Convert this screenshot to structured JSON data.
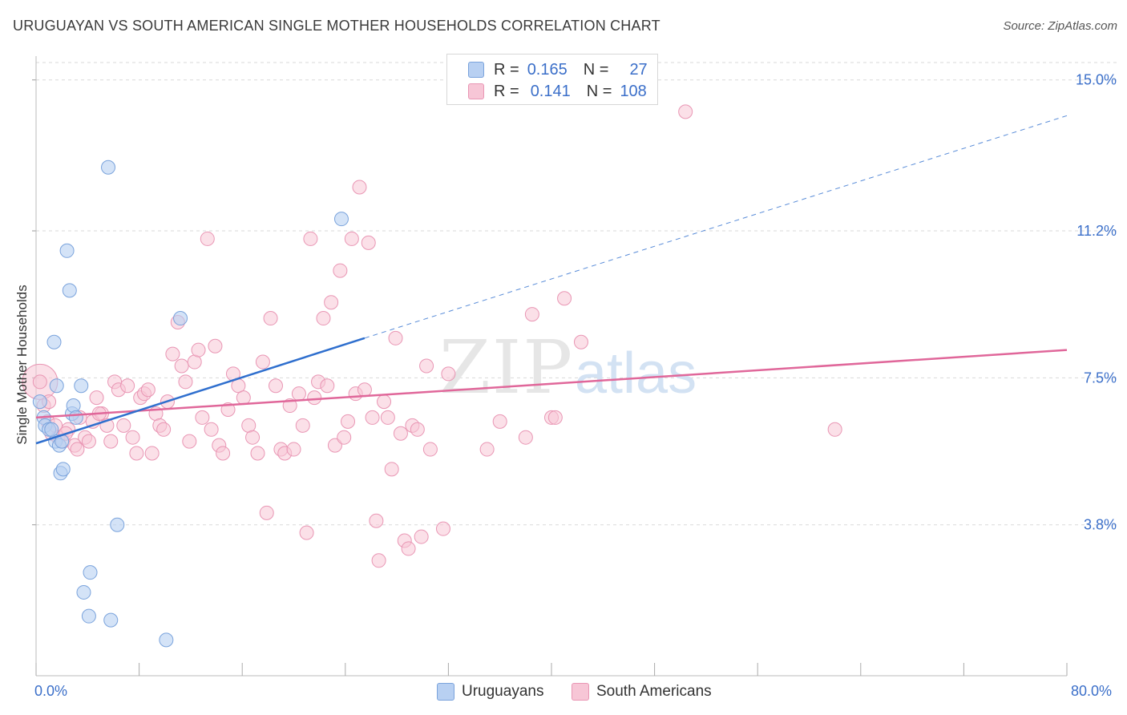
{
  "title": "URUGUAYAN VS SOUTH AMERICAN SINGLE MOTHER HOUSEHOLDS CORRELATION CHART",
  "source": "Source: ZipAtlas.com",
  "legend": {
    "rows": [
      {
        "r_label": "R =",
        "r_value": "0.165",
        "n_label": "N =",
        "n_value": "27"
      },
      {
        "r_label": "R =",
        "r_value": "0.141",
        "n_label": "N =",
        "n_value": "108"
      }
    ]
  },
  "bottom_legend": [
    "Uruguayans",
    "South Americans"
  ],
  "x_labels": {
    "min": "0.0%",
    "max": "80.0%"
  },
  "colors": {
    "blue_fill": "#b8d0f2",
    "blue_stroke": "#7aa3dc",
    "blue_line": "#2f6fce",
    "pink_fill": "#f7c6d6",
    "pink_stroke": "#e996b4",
    "pink_line": "#e0679a",
    "grid": "#d9d9d9",
    "tick_label": "#3b6fc9"
  },
  "chart_data": {
    "type": "scatter",
    "title": "URUGUAYAN VS SOUTH AMERICAN SINGLE MOTHER HOUSEHOLDS CORRELATION CHART",
    "xlabel": "",
    "ylabel": "Single Mother Households",
    "xlim": [
      0,
      80
    ],
    "ylim": [
      0,
      15.6
    ],
    "y_ticks": [
      3.8,
      7.5,
      11.2,
      15.0
    ],
    "y_tick_labels": [
      "3.8%",
      "7.5%",
      "11.2%",
      "15.0%"
    ],
    "grid": "horizontal dashed",
    "legend_position": "top-center",
    "series": [
      {
        "name": "Uruguayans",
        "color": "#b8d0f2",
        "points": [
          [
            0.3,
            6.9
          ],
          [
            0.6,
            6.5
          ],
          [
            0.7,
            6.3
          ],
          [
            1.0,
            6.2
          ],
          [
            1.5,
            5.9
          ],
          [
            1.6,
            7.3
          ],
          [
            1.8,
            5.8
          ],
          [
            1.9,
            5.1
          ],
          [
            2.1,
            5.2
          ],
          [
            2.4,
            10.7
          ],
          [
            2.6,
            9.7
          ],
          [
            2.8,
            6.6
          ],
          [
            2.9,
            6.8
          ],
          [
            3.1,
            6.5
          ],
          [
            3.5,
            7.3
          ],
          [
            4.2,
            2.6
          ],
          [
            3.7,
            2.1
          ],
          [
            4.1,
            1.5
          ],
          [
            5.8,
            1.4
          ],
          [
            6.3,
            3.8
          ],
          [
            5.6,
            12.8
          ],
          [
            1.4,
            8.4
          ],
          [
            10.1,
            0.9
          ],
          [
            11.2,
            9.0
          ],
          [
            23.7,
            11.5
          ],
          [
            1.2,
            6.2
          ],
          [
            2.0,
            5.9
          ]
        ],
        "trend": {
          "x": [
            0,
            25.5
          ],
          "y": [
            5.85,
            8.5
          ],
          "dashed_to": [
            80,
            14.1
          ]
        }
      },
      {
        "name": "South Americans",
        "color": "#f7c6d6",
        "points": [
          [
            0.3,
            7.4
          ],
          [
            0.6,
            6.8
          ],
          [
            0.9,
            6.4
          ],
          [
            1.2,
            6.1
          ],
          [
            1.5,
            6.3
          ],
          [
            1.7,
            6.0
          ],
          [
            2.1,
            5.9
          ],
          [
            2.5,
            6.2
          ],
          [
            3.0,
            5.8
          ],
          [
            3.4,
            6.5
          ],
          [
            3.8,
            6.0
          ],
          [
            4.1,
            5.9
          ],
          [
            4.4,
            6.4
          ],
          [
            4.7,
            7.0
          ],
          [
            5.1,
            6.6
          ],
          [
            5.5,
            6.3
          ],
          [
            5.8,
            5.9
          ],
          [
            6.1,
            7.4
          ],
          [
            6.4,
            7.2
          ],
          [
            6.8,
            6.3
          ],
          [
            7.1,
            7.3
          ],
          [
            7.5,
            6.0
          ],
          [
            7.8,
            5.6
          ],
          [
            8.1,
            7.0
          ],
          [
            8.4,
            7.1
          ],
          [
            8.7,
            7.2
          ],
          [
            9.0,
            5.6
          ],
          [
            9.3,
            6.6
          ],
          [
            9.6,
            6.3
          ],
          [
            9.9,
            6.2
          ],
          [
            10.2,
            6.9
          ],
          [
            10.6,
            8.1
          ],
          [
            11.0,
            8.9
          ],
          [
            11.3,
            7.8
          ],
          [
            11.6,
            7.4
          ],
          [
            11.9,
            5.9
          ],
          [
            12.3,
            7.9
          ],
          [
            12.6,
            8.2
          ],
          [
            12.9,
            6.5
          ],
          [
            13.3,
            11.0
          ],
          [
            13.6,
            6.2
          ],
          [
            13.9,
            8.3
          ],
          [
            14.2,
            5.8
          ],
          [
            14.5,
            5.6
          ],
          [
            14.9,
            6.7
          ],
          [
            15.3,
            7.6
          ],
          [
            15.7,
            7.3
          ],
          [
            16.1,
            7.0
          ],
          [
            16.5,
            6.3
          ],
          [
            16.8,
            6.0
          ],
          [
            17.2,
            5.6
          ],
          [
            17.6,
            7.9
          ],
          [
            17.9,
            4.1
          ],
          [
            18.2,
            9.0
          ],
          [
            18.6,
            7.3
          ],
          [
            19.0,
            5.7
          ],
          [
            19.3,
            5.6
          ],
          [
            19.7,
            6.8
          ],
          [
            20.0,
            5.7
          ],
          [
            20.4,
            7.1
          ],
          [
            20.7,
            6.3
          ],
          [
            21.0,
            3.6
          ],
          [
            21.3,
            11.0
          ],
          [
            21.6,
            7.0
          ],
          [
            21.9,
            7.4
          ],
          [
            22.3,
            9.0
          ],
          [
            22.6,
            7.3
          ],
          [
            22.9,
            9.4
          ],
          [
            23.2,
            5.8
          ],
          [
            23.6,
            10.2
          ],
          [
            23.9,
            6.0
          ],
          [
            24.2,
            6.4
          ],
          [
            24.5,
            11.0
          ],
          [
            24.8,
            7.1
          ],
          [
            25.1,
            12.3
          ],
          [
            25.5,
            7.2
          ],
          [
            25.8,
            10.9
          ],
          [
            26.1,
            6.5
          ],
          [
            26.4,
            3.9
          ],
          [
            26.6,
            2.9
          ],
          [
            27.0,
            6.9
          ],
          [
            27.3,
            6.5
          ],
          [
            27.6,
            5.2
          ],
          [
            27.9,
            8.5
          ],
          [
            28.3,
            6.1
          ],
          [
            28.6,
            3.4
          ],
          [
            28.9,
            3.2
          ],
          [
            29.2,
            6.3
          ],
          [
            29.6,
            6.2
          ],
          [
            29.9,
            3.5
          ],
          [
            30.3,
            7.8
          ],
          [
            30.6,
            5.7
          ],
          [
            31.6,
            3.7
          ],
          [
            32.0,
            7.6
          ],
          [
            35.0,
            5.7
          ],
          [
            36.0,
            6.4
          ],
          [
            38.0,
            6.0
          ],
          [
            38.5,
            9.1
          ],
          [
            40.0,
            6.5
          ],
          [
            40.3,
            6.5
          ],
          [
            41.0,
            9.5
          ],
          [
            42.3,
            8.4
          ],
          [
            50.4,
            14.2
          ],
          [
            62.0,
            6.2
          ],
          [
            1.0,
            6.9
          ],
          [
            2.3,
            6.1
          ],
          [
            3.2,
            5.7
          ],
          [
            4.9,
            6.6
          ]
        ],
        "trend": {
          "x": [
            0,
            80
          ],
          "y": [
            6.5,
            8.2
          ]
        }
      }
    ]
  }
}
